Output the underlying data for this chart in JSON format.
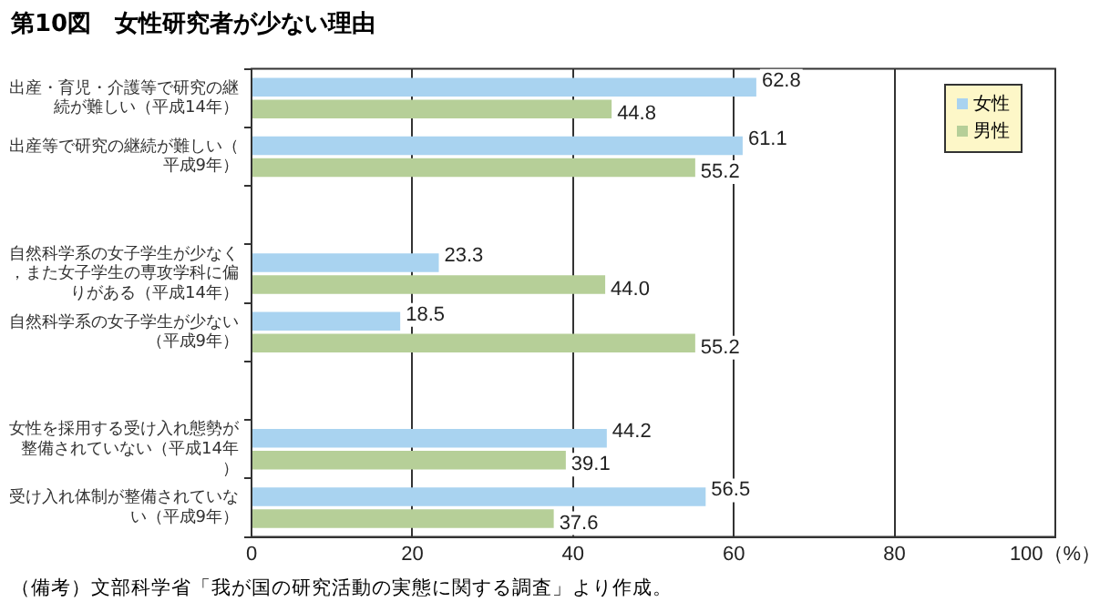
{
  "chart_data": {
    "type": "bar",
    "orientation": "horizontal",
    "title": "第10図　女性研究者が少ない理由",
    "categories": [
      "出産・育児・介護等で研究の継続が難しい（平成14年）",
      "出産等で研究の継続が難しい（平成9年）",
      null,
      "自然科学系の女子学生が少なく，また女子学生の専攻学科に偏りがある（平成14年）",
      "自然科学系の女子学生が少ない（平成9年）",
      null,
      "女性を採用する受け入れ態勢が整備されていない（平成14年）",
      "受け入れ体制が整備されていない（平成9年）"
    ],
    "series": [
      {
        "name": "女性",
        "color": "#a9d3f0",
        "values": [
          62.8,
          61.1,
          null,
          23.3,
          18.5,
          null,
          44.2,
          56.5
        ],
        "value_labels": [
          "62.8",
          "61.1",
          null,
          "23.3",
          "18.5",
          null,
          "44.2",
          "56.5"
        ]
      },
      {
        "name": "男性",
        "color": "#b6cf98",
        "values": [
          44.8,
          55.2,
          null,
          44.0,
          55.2,
          null,
          39.1,
          37.6
        ],
        "value_labels": [
          "44.8",
          "55.2",
          null,
          "44.0",
          "55.2",
          null,
          "39.1",
          "37.6"
        ]
      }
    ],
    "xlim": [
      0,
      100
    ],
    "xticks": [
      0,
      20,
      40,
      60,
      80,
      {
        "value": 100,
        "label": "100（%）"
      }
    ],
    "grid": "x",
    "legend": "top right",
    "annotations": [
      "（備考）文部科学省「我が国の研究活動の実態に関する調査」より作成。"
    ]
  }
}
